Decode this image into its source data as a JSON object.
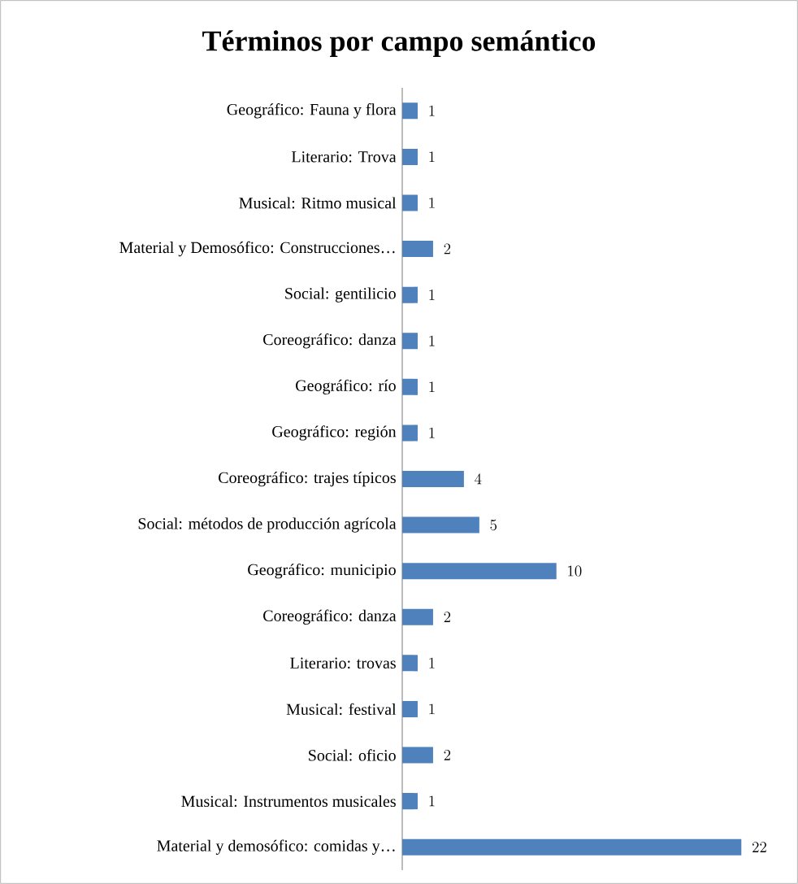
{
  "chart_data": {
    "type": "bar",
    "orientation": "horizontal",
    "title": "Términos por campo semántico",
    "categories": [
      "Geográfico: Fauna y flora",
      "Literario: Trova",
      "Musical: Ritmo musical",
      "Material y Demosófico: Construcciones…",
      "Social: gentilicio",
      "Coreográfico: danza",
      "Geográfico: río",
      "Geográfico: región",
      "Coreográfico: trajes típicos",
      "Social: métodos de producción agrícola",
      "Geográfico: municipio",
      "Coreográfico: danza",
      "Literario: trovas",
      "Musical: festival",
      "Social: oficio",
      "Musical: Instrumentos musicales",
      "Material y demosófico: comidas y…"
    ],
    "values": [
      1,
      1,
      1,
      2,
      1,
      1,
      1,
      1,
      4,
      5,
      10,
      2,
      1,
      1,
      2,
      1,
      22
    ],
    "color": "#4f81bd",
    "data_labels": true,
    "tick_labels": "y"
  }
}
